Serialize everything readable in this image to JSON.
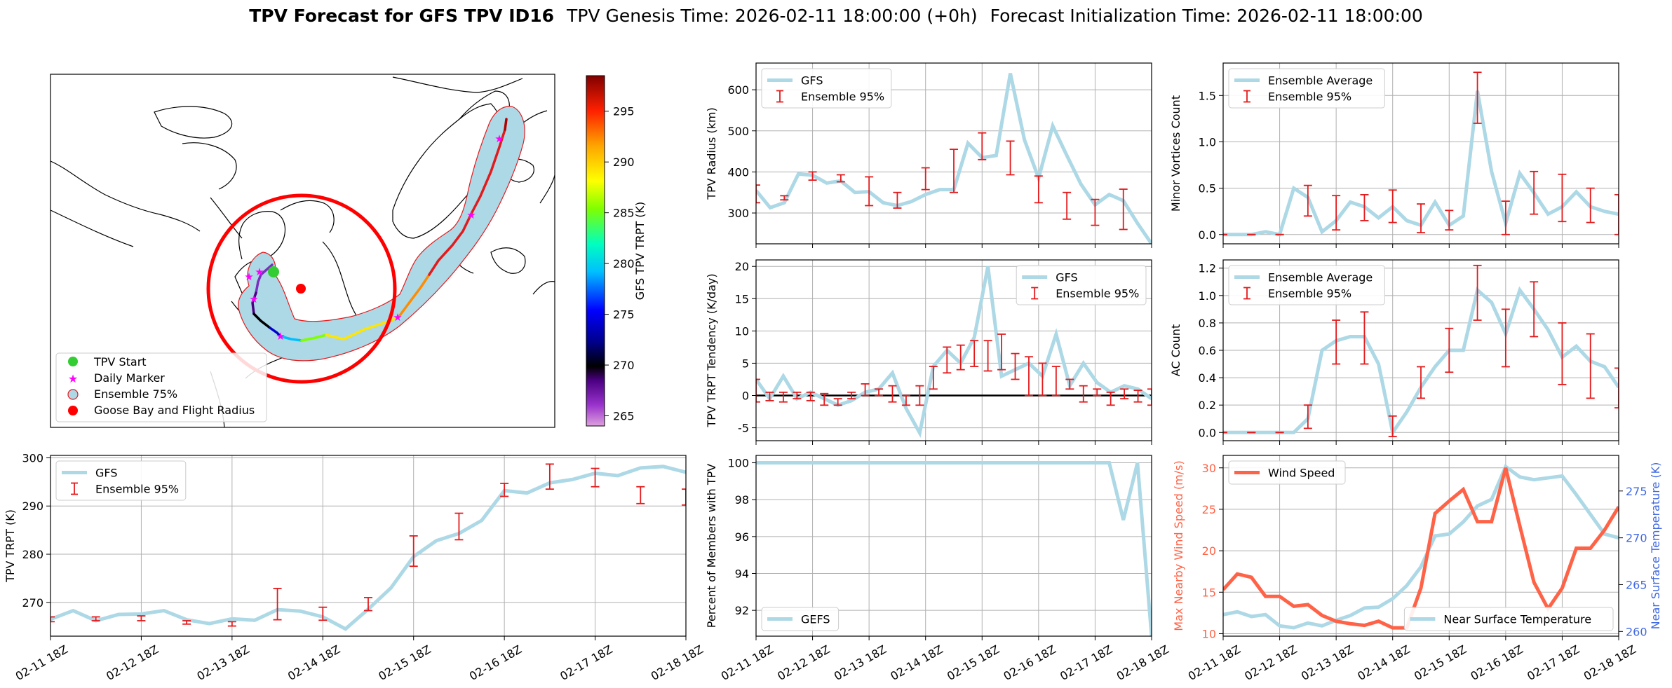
{
  "suptitle": {
    "bold": "TPV Forecast for GFS TPV ID16",
    "genesis": "TPV Genesis Time: 2026-02-11 18:00:00 (+0h)",
    "init": "Forecast Initialization Time: 2026-02-11 18:00:00"
  },
  "colors": {
    "gfs": "#add8e6",
    "error": "#e31a1c",
    "wind": "#ff6347",
    "temp": "#4169e1",
    "grid": "#b0b0b0",
    "zero": "#000000"
  },
  "time_ticks": [
    "02-11 18Z",
    "02-12 18Z",
    "02-13 18Z",
    "02-14 18Z",
    "02-15 18Z",
    "02-16 18Z",
    "02-17 18Z",
    "02-18 18Z"
  ],
  "map": {
    "colorbar": {
      "label": "GFS TPV TRPT (K)",
      "ticks": [
        "265",
        "270",
        "275",
        "280",
        "285",
        "290",
        "295"
      ],
      "min": 264,
      "max": 298.5
    },
    "legend": [
      "TPV Start",
      "Daily Marker",
      "Ensemble 75%",
      "Goose Bay and Flight Radius"
    ]
  },
  "chart_data": [
    {
      "id": "trpt",
      "type": "line",
      "ylabel": "TPV TRPT (K)",
      "ylim": [
        263,
        300.5
      ],
      "yticks": [
        270,
        280,
        290,
        300
      ],
      "legend": [
        "GFS",
        "Ensemble 95%"
      ],
      "legend_pos": "upper-left",
      "gfs": [
        266.5,
        268.3,
        266.2,
        267.5,
        267.6,
        268.3,
        266.4,
        265.6,
        266.6,
        266.3,
        268.5,
        268.2,
        267.0,
        264.5,
        268.6,
        273.0,
        279.5,
        282.8,
        284.3,
        287.0,
        293.2,
        292.7,
        294.8,
        295.5,
        296.8,
        296.3,
        297.9,
        298.2,
        297.0
      ],
      "err": [
        [
          0,
          266.0,
          267.0
        ],
        [
          2,
          266.2,
          267.0
        ],
        [
          4,
          266.2,
          267.2
        ],
        [
          6,
          265.5,
          266.2
        ],
        [
          8,
          265.1,
          266.0
        ],
        [
          10,
          266.4,
          272.9
        ],
        [
          12,
          266.3,
          269.0
        ],
        [
          14,
          268.3,
          271.0
        ],
        [
          16,
          277.5,
          283.8
        ],
        [
          18,
          283.0,
          288.5
        ],
        [
          20,
          292.0,
          294.7
        ],
        [
          22,
          293.5,
          298.7
        ],
        [
          24,
          294.0,
          297.8
        ],
        [
          26,
          290.5,
          294.0
        ],
        [
          28,
          290.2,
          293.5
        ]
      ]
    },
    {
      "id": "radius",
      "type": "line",
      "ylabel": "TPV Radius (km)",
      "ylim": [
        225,
        665
      ],
      "yticks": [
        300,
        400,
        500,
        600
      ],
      "legend": [
        "GFS",
        "Ensemble 95%"
      ],
      "legend_pos": "upper-left",
      "gfs": [
        355,
        313,
        325,
        395,
        392,
        373,
        378,
        350,
        352,
        325,
        318,
        328,
        345,
        357,
        357,
        470,
        435,
        440,
        640,
        478,
        385,
        512,
        440,
        370,
        320,
        345,
        330,
        275,
        225
      ],
      "err": [
        [
          0,
          325,
          368
        ],
        [
          2,
          332,
          342
        ],
        [
          4,
          380,
          400
        ],
        [
          6,
          376,
          393
        ],
        [
          8,
          318,
          388
        ],
        [
          10,
          312,
          350
        ],
        [
          12,
          357,
          410
        ],
        [
          14,
          350,
          455
        ],
        [
          16,
          430,
          495
        ],
        [
          18,
          393,
          475
        ],
        [
          20,
          325,
          390
        ],
        [
          22,
          285,
          350
        ],
        [
          24,
          270,
          333
        ],
        [
          26,
          260,
          358
        ]
      ]
    },
    {
      "id": "minor",
      "type": "line",
      "ylabel": "Minor Vortices Count",
      "ylim": [
        -0.1,
        1.85
      ],
      "yticks": [
        0.0,
        0.5,
        1.0,
        1.5
      ],
      "legend": [
        "Ensemble Average",
        "Ensemble 95%"
      ],
      "legend_pos": "upper-left",
      "gfs": [
        0.0,
        0.0,
        0.0,
        0.03,
        0.0,
        0.5,
        0.4,
        0.03,
        0.15,
        0.35,
        0.3,
        0.18,
        0.3,
        0.15,
        0.1,
        0.35,
        0.1,
        0.2,
        1.55,
        0.68,
        0.12,
        0.66,
        0.45,
        0.22,
        0.3,
        0.46,
        0.3,
        0.25,
        0.22
      ],
      "err": [
        [
          0,
          0.0,
          0.0
        ],
        [
          2,
          0.0,
          0.0
        ],
        [
          4,
          0.0,
          0.0
        ],
        [
          6,
          0.2,
          0.53
        ],
        [
          8,
          0.05,
          0.42
        ],
        [
          10,
          0.15,
          0.43
        ],
        [
          12,
          0.13,
          0.48
        ],
        [
          14,
          0.02,
          0.33
        ],
        [
          16,
          0.05,
          0.26
        ],
        [
          18,
          1.2,
          1.75
        ],
        [
          20,
          0.0,
          0.36
        ],
        [
          22,
          0.22,
          0.68
        ],
        [
          24,
          0.14,
          0.65
        ],
        [
          26,
          0.13,
          0.5
        ],
        [
          28,
          0.0,
          0.43
        ]
      ]
    },
    {
      "id": "tendency",
      "type": "line",
      "ylabel": "TPV TRPT Tendency (K/day)",
      "ylim": [
        -7,
        21
      ],
      "yticks": [
        -5,
        0,
        5,
        10,
        15,
        20
      ],
      "zero_line": true,
      "legend": [
        "GFS",
        "Ensemble 95%"
      ],
      "legend_pos": "upper-right",
      "gfs": [
        2.5,
        -0.5,
        3.0,
        -0.5,
        0.5,
        -0.5,
        -1.5,
        -0.8,
        0.5,
        1.0,
        3.5,
        -2.0,
        -5.8,
        4.5,
        7.0,
        5.0,
        9.0,
        20.0,
        3.0,
        4.0,
        5.0,
        3.0,
        9.5,
        1.5,
        5.0,
        2.0,
        0.5,
        1.5,
        1.0,
        -0.5
      ],
      "err": [
        [
          0,
          -1.0,
          2.5
        ],
        [
          1,
          -0.8,
          0.5
        ],
        [
          2,
          -1.0,
          0.5
        ],
        [
          3,
          -0.5,
          0.5
        ],
        [
          4,
          -0.8,
          0.5
        ],
        [
          5,
          -1.5,
          0.3
        ],
        [
          6,
          -1.5,
          -0.5
        ],
        [
          7,
          -0.5,
          0.5
        ],
        [
          8,
          0.0,
          1.8
        ],
        [
          9,
          0.0,
          1.0
        ],
        [
          10,
          -1.0,
          1.5
        ],
        [
          11,
          -1.5,
          0.0
        ],
        [
          12,
          -1.5,
          1.5
        ],
        [
          13,
          1.0,
          4.5
        ],
        [
          14,
          3.5,
          7.5
        ],
        [
          15,
          4.0,
          7.8
        ],
        [
          16,
          4.5,
          8.5
        ],
        [
          17,
          3.8,
          8.5
        ],
        [
          18,
          4.0,
          9.5
        ],
        [
          19,
          2.5,
          6.5
        ],
        [
          20,
          0.0,
          6.0
        ],
        [
          21,
          0.0,
          5.0
        ],
        [
          22,
          0.0,
          4.5
        ],
        [
          23,
          1.0,
          2.5
        ],
        [
          24,
          -1.0,
          1.5
        ],
        [
          25,
          0.0,
          1.0
        ],
        [
          26,
          -1.5,
          0.5
        ],
        [
          27,
          -0.5,
          1.0
        ],
        [
          28,
          -1.0,
          0.8
        ],
        [
          29,
          -1.5,
          1.0
        ]
      ]
    },
    {
      "id": "ac",
      "type": "line",
      "ylabel": "AC Count",
      "ylim": [
        -0.06,
        1.26
      ],
      "yticks": [
        0.0,
        0.2,
        0.4,
        0.6,
        0.8,
        1.0,
        1.2
      ],
      "legend": [
        "Ensemble Average",
        "Ensemble 95%"
      ],
      "legend_pos": "upper-left",
      "gfs": [
        0.0,
        0.0,
        0.0,
        0.0,
        0.0,
        0.0,
        0.1,
        0.6,
        0.67,
        0.7,
        0.7,
        0.5,
        0.0,
        0.15,
        0.33,
        0.48,
        0.6,
        0.6,
        1.04,
        0.95,
        0.72,
        1.04,
        0.9,
        0.75,
        0.55,
        0.63,
        0.52,
        0.48,
        0.33
      ],
      "err": [
        [
          0,
          0.0,
          0.0
        ],
        [
          2,
          0.0,
          0.0
        ],
        [
          4,
          0.0,
          0.0
        ],
        [
          6,
          0.03,
          0.2
        ],
        [
          8,
          0.5,
          0.82
        ],
        [
          10,
          0.5,
          0.88
        ],
        [
          12,
          -0.03,
          0.12
        ],
        [
          14,
          0.25,
          0.48
        ],
        [
          16,
          0.44,
          0.76
        ],
        [
          18,
          0.82,
          1.22
        ],
        [
          20,
          0.48,
          0.9
        ],
        [
          22,
          0.7,
          1.1
        ],
        [
          24,
          0.35,
          0.8
        ],
        [
          26,
          0.25,
          0.72
        ],
        [
          28,
          0.18,
          0.47
        ]
      ]
    },
    {
      "id": "percent",
      "type": "line",
      "ylabel": "Percent of Members with TPV",
      "ylim": [
        90.6,
        100.4
      ],
      "yticks": [
        92,
        94,
        96,
        98,
        100
      ],
      "legend": [
        "GEFS"
      ],
      "legend_pos": "lower-left",
      "gfs": [
        100,
        100,
        100,
        100,
        100,
        100,
        100,
        100,
        100,
        100,
        100,
        100,
        100,
        100,
        100,
        100,
        100,
        100,
        100,
        100,
        100,
        100,
        100,
        100,
        100,
        100,
        96.9,
        100,
        90.6
      ]
    },
    {
      "id": "wind",
      "type": "line",
      "ylabel": "Max Nearby Wind Speed (m/s)",
      "ylabel2": "Near Surface Temperature (K)",
      "ylim": [
        9.7,
        31.5
      ],
      "yticks": [
        10,
        15,
        20,
        25,
        30
      ],
      "ylim2": [
        259.5,
        278.8
      ],
      "yticks2": [
        260,
        265,
        270,
        275
      ],
      "legend": [
        "Wind Speed"
      ],
      "legend2": [
        "Near Surface Temperature"
      ],
      "wind": [
        15.3,
        17.2,
        16.8,
        14.5,
        14.5,
        13.3,
        13.5,
        12.2,
        11.5,
        11.2,
        11.0,
        11.5,
        10.7,
        10.7,
        15.5,
        24.5,
        26.0,
        27.4,
        23.5,
        23.5,
        30.0,
        23.0,
        16.2,
        13.0,
        15.5,
        20.3,
        20.3,
        22.5,
        25.3
      ],
      "temp": [
        261.8,
        262.1,
        261.6,
        261.8,
        260.6,
        260.4,
        260.9,
        260.6,
        261.2,
        261.7,
        262.5,
        262.6,
        263.5,
        264.9,
        266.9,
        270.2,
        270.4,
        271.7,
        273.4,
        274.1,
        277.6,
        276.5,
        276.2,
        276.4,
        276.6,
        274.6,
        272.5,
        270.4,
        270.0
      ]
    }
  ]
}
